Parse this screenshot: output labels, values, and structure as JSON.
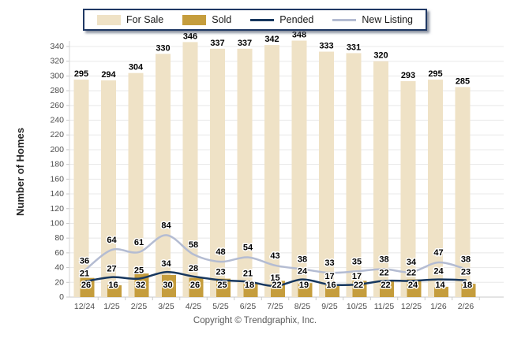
{
  "legend": {
    "items": [
      {
        "label": "For Sale",
        "type": "bar",
        "color": "#EFE2C6"
      },
      {
        "label": "Sold",
        "type": "bar",
        "color": "#C59D3D"
      },
      {
        "label": "Pended",
        "type": "line",
        "color": "#17375E"
      },
      {
        "label": "New Listing",
        "type": "line",
        "color": "#B4BCD2"
      }
    ]
  },
  "footer": {
    "copyright": "Copyright © Trendgraphix, Inc."
  },
  "chart_data": {
    "type": "bar",
    "subtype": "combo-bar-line",
    "title": "",
    "xlabel": "",
    "ylabel": "Number of Homes",
    "ylim": [
      0,
      340
    ],
    "ytick_step": 20,
    "grid": true,
    "legend_position": "top-center",
    "categories": [
      "12/24",
      "1/25",
      "2/25",
      "3/25",
      "4/25",
      "5/25",
      "6/25",
      "7/25",
      "8/25",
      "9/25",
      "10/25",
      "11/25",
      "12/25",
      "1/26",
      "2/26"
    ],
    "series": [
      {
        "name": "For Sale",
        "type": "bar",
        "color": "#EFE2C6",
        "values": [
          295,
          294,
          304,
          330,
          346,
          337,
          337,
          342,
          348,
          333,
          331,
          320,
          293,
          295,
          285
        ]
      },
      {
        "name": "Sold",
        "type": "bar",
        "color": "#C59D3D",
        "values": [
          26,
          16,
          32,
          30,
          26,
          25,
          18,
          22,
          19,
          16,
          22,
          22,
          24,
          14,
          18
        ]
      },
      {
        "name": "Pended",
        "type": "line",
        "color": "#17375E",
        "values": [
          21,
          27,
          25,
          34,
          28,
          23,
          21,
          15,
          24,
          17,
          17,
          22,
          22,
          24,
          23
        ]
      },
      {
        "name": "New Listing",
        "type": "line",
        "color": "#B4BCD2",
        "values": [
          36,
          64,
          61,
          84,
          58,
          48,
          54,
          43,
          38,
          33,
          35,
          38,
          34,
          47,
          38
        ]
      }
    ],
    "colors": {
      "gridline": "#E8E8E8",
      "axis": "#C8C8C8",
      "tick_label": "#4d4d4d",
      "value_label": "#000000"
    }
  }
}
